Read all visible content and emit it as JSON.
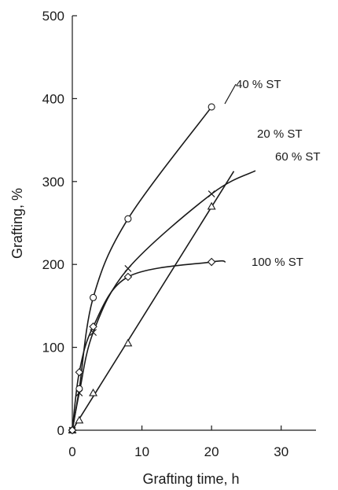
{
  "chart_data": {
    "type": "scatter",
    "xlabel": "Grafting time, h",
    "ylabel": "Grafting, %",
    "xlim": [
      0,
      35
    ],
    "ylim": [
      0,
      500
    ],
    "xticks": [
      "0",
      "10",
      "20",
      "30"
    ],
    "yticks": [
      "0",
      "100",
      "200",
      "300",
      "400",
      "500"
    ],
    "grid": false,
    "series": [
      {
        "name": "40 % ST",
        "marker": "circle",
        "points": [
          [
            0,
            0
          ],
          [
            1,
            50
          ],
          [
            3,
            160
          ],
          [
            8,
            255
          ],
          [
            20,
            390
          ]
        ]
      },
      {
        "name": "20 % ST",
        "marker": "triangle",
        "points": [
          [
            0,
            0
          ],
          [
            1,
            12
          ],
          [
            3,
            45
          ],
          [
            8,
            105
          ],
          [
            20,
            270
          ]
        ]
      },
      {
        "name": "60 % ST",
        "marker": "cross",
        "points": [
          [
            0,
            0
          ],
          [
            1,
            45
          ],
          [
            3,
            118
          ],
          [
            8,
            195
          ],
          [
            20,
            285
          ]
        ]
      },
      {
        "name": "100 % ST",
        "marker": "diamond",
        "points": [
          [
            0,
            0
          ],
          [
            1,
            70
          ],
          [
            3,
            125
          ],
          [
            8,
            185
          ],
          [
            20,
            203
          ]
        ]
      }
    ]
  }
}
